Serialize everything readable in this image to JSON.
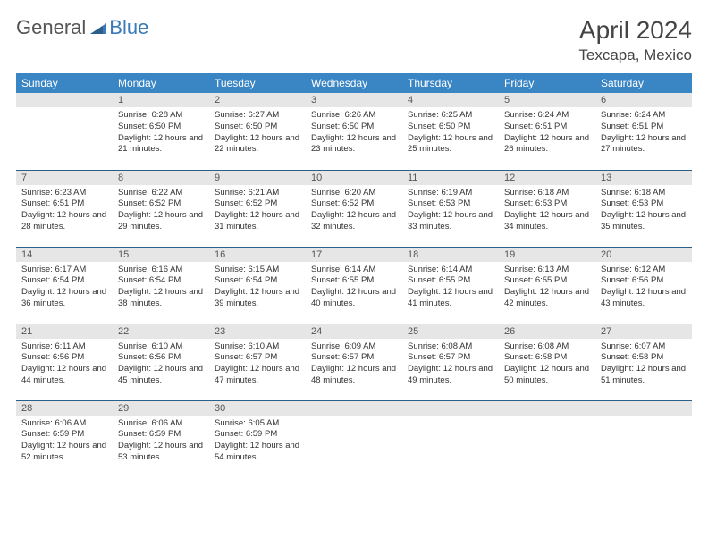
{
  "logo": {
    "text1": "General",
    "text2": "Blue"
  },
  "title": "April 2024",
  "location": "Texcapa, Mexico",
  "colors": {
    "header_bg": "#3a85c4",
    "daynum_bg": "#e6e6e6",
    "rule": "#2a5f8a",
    "logo_blue": "#3a7ab8"
  },
  "weekdays": [
    "Sunday",
    "Monday",
    "Tuesday",
    "Wednesday",
    "Thursday",
    "Friday",
    "Saturday"
  ],
  "weeks": [
    [
      null,
      {
        "n": "1",
        "sr": "6:28 AM",
        "ss": "6:50 PM",
        "dl": "12 hours and 21 minutes."
      },
      {
        "n": "2",
        "sr": "6:27 AM",
        "ss": "6:50 PM",
        "dl": "12 hours and 22 minutes."
      },
      {
        "n": "3",
        "sr": "6:26 AM",
        "ss": "6:50 PM",
        "dl": "12 hours and 23 minutes."
      },
      {
        "n": "4",
        "sr": "6:25 AM",
        "ss": "6:50 PM",
        "dl": "12 hours and 25 minutes."
      },
      {
        "n": "5",
        "sr": "6:24 AM",
        "ss": "6:51 PM",
        "dl": "12 hours and 26 minutes."
      },
      {
        "n": "6",
        "sr": "6:24 AM",
        "ss": "6:51 PM",
        "dl": "12 hours and 27 minutes."
      }
    ],
    [
      {
        "n": "7",
        "sr": "6:23 AM",
        "ss": "6:51 PM",
        "dl": "12 hours and 28 minutes."
      },
      {
        "n": "8",
        "sr": "6:22 AM",
        "ss": "6:52 PM",
        "dl": "12 hours and 29 minutes."
      },
      {
        "n": "9",
        "sr": "6:21 AM",
        "ss": "6:52 PM",
        "dl": "12 hours and 31 minutes."
      },
      {
        "n": "10",
        "sr": "6:20 AM",
        "ss": "6:52 PM",
        "dl": "12 hours and 32 minutes."
      },
      {
        "n": "11",
        "sr": "6:19 AM",
        "ss": "6:53 PM",
        "dl": "12 hours and 33 minutes."
      },
      {
        "n": "12",
        "sr": "6:18 AM",
        "ss": "6:53 PM",
        "dl": "12 hours and 34 minutes."
      },
      {
        "n": "13",
        "sr": "6:18 AM",
        "ss": "6:53 PM",
        "dl": "12 hours and 35 minutes."
      }
    ],
    [
      {
        "n": "14",
        "sr": "6:17 AM",
        "ss": "6:54 PM",
        "dl": "12 hours and 36 minutes."
      },
      {
        "n": "15",
        "sr": "6:16 AM",
        "ss": "6:54 PM",
        "dl": "12 hours and 38 minutes."
      },
      {
        "n": "16",
        "sr": "6:15 AM",
        "ss": "6:54 PM",
        "dl": "12 hours and 39 minutes."
      },
      {
        "n": "17",
        "sr": "6:14 AM",
        "ss": "6:55 PM",
        "dl": "12 hours and 40 minutes."
      },
      {
        "n": "18",
        "sr": "6:14 AM",
        "ss": "6:55 PM",
        "dl": "12 hours and 41 minutes."
      },
      {
        "n": "19",
        "sr": "6:13 AM",
        "ss": "6:55 PM",
        "dl": "12 hours and 42 minutes."
      },
      {
        "n": "20",
        "sr": "6:12 AM",
        "ss": "6:56 PM",
        "dl": "12 hours and 43 minutes."
      }
    ],
    [
      {
        "n": "21",
        "sr": "6:11 AM",
        "ss": "6:56 PM",
        "dl": "12 hours and 44 minutes."
      },
      {
        "n": "22",
        "sr": "6:10 AM",
        "ss": "6:56 PM",
        "dl": "12 hours and 45 minutes."
      },
      {
        "n": "23",
        "sr": "6:10 AM",
        "ss": "6:57 PM",
        "dl": "12 hours and 47 minutes."
      },
      {
        "n": "24",
        "sr": "6:09 AM",
        "ss": "6:57 PM",
        "dl": "12 hours and 48 minutes."
      },
      {
        "n": "25",
        "sr": "6:08 AM",
        "ss": "6:57 PM",
        "dl": "12 hours and 49 minutes."
      },
      {
        "n": "26",
        "sr": "6:08 AM",
        "ss": "6:58 PM",
        "dl": "12 hours and 50 minutes."
      },
      {
        "n": "27",
        "sr": "6:07 AM",
        "ss": "6:58 PM",
        "dl": "12 hours and 51 minutes."
      }
    ],
    [
      {
        "n": "28",
        "sr": "6:06 AM",
        "ss": "6:59 PM",
        "dl": "12 hours and 52 minutes."
      },
      {
        "n": "29",
        "sr": "6:06 AM",
        "ss": "6:59 PM",
        "dl": "12 hours and 53 minutes."
      },
      {
        "n": "30",
        "sr": "6:05 AM",
        "ss": "6:59 PM",
        "dl": "12 hours and 54 minutes."
      },
      null,
      null,
      null,
      null
    ]
  ],
  "labels": {
    "sunrise": "Sunrise: ",
    "sunset": "Sunset: ",
    "daylight": "Daylight: "
  }
}
